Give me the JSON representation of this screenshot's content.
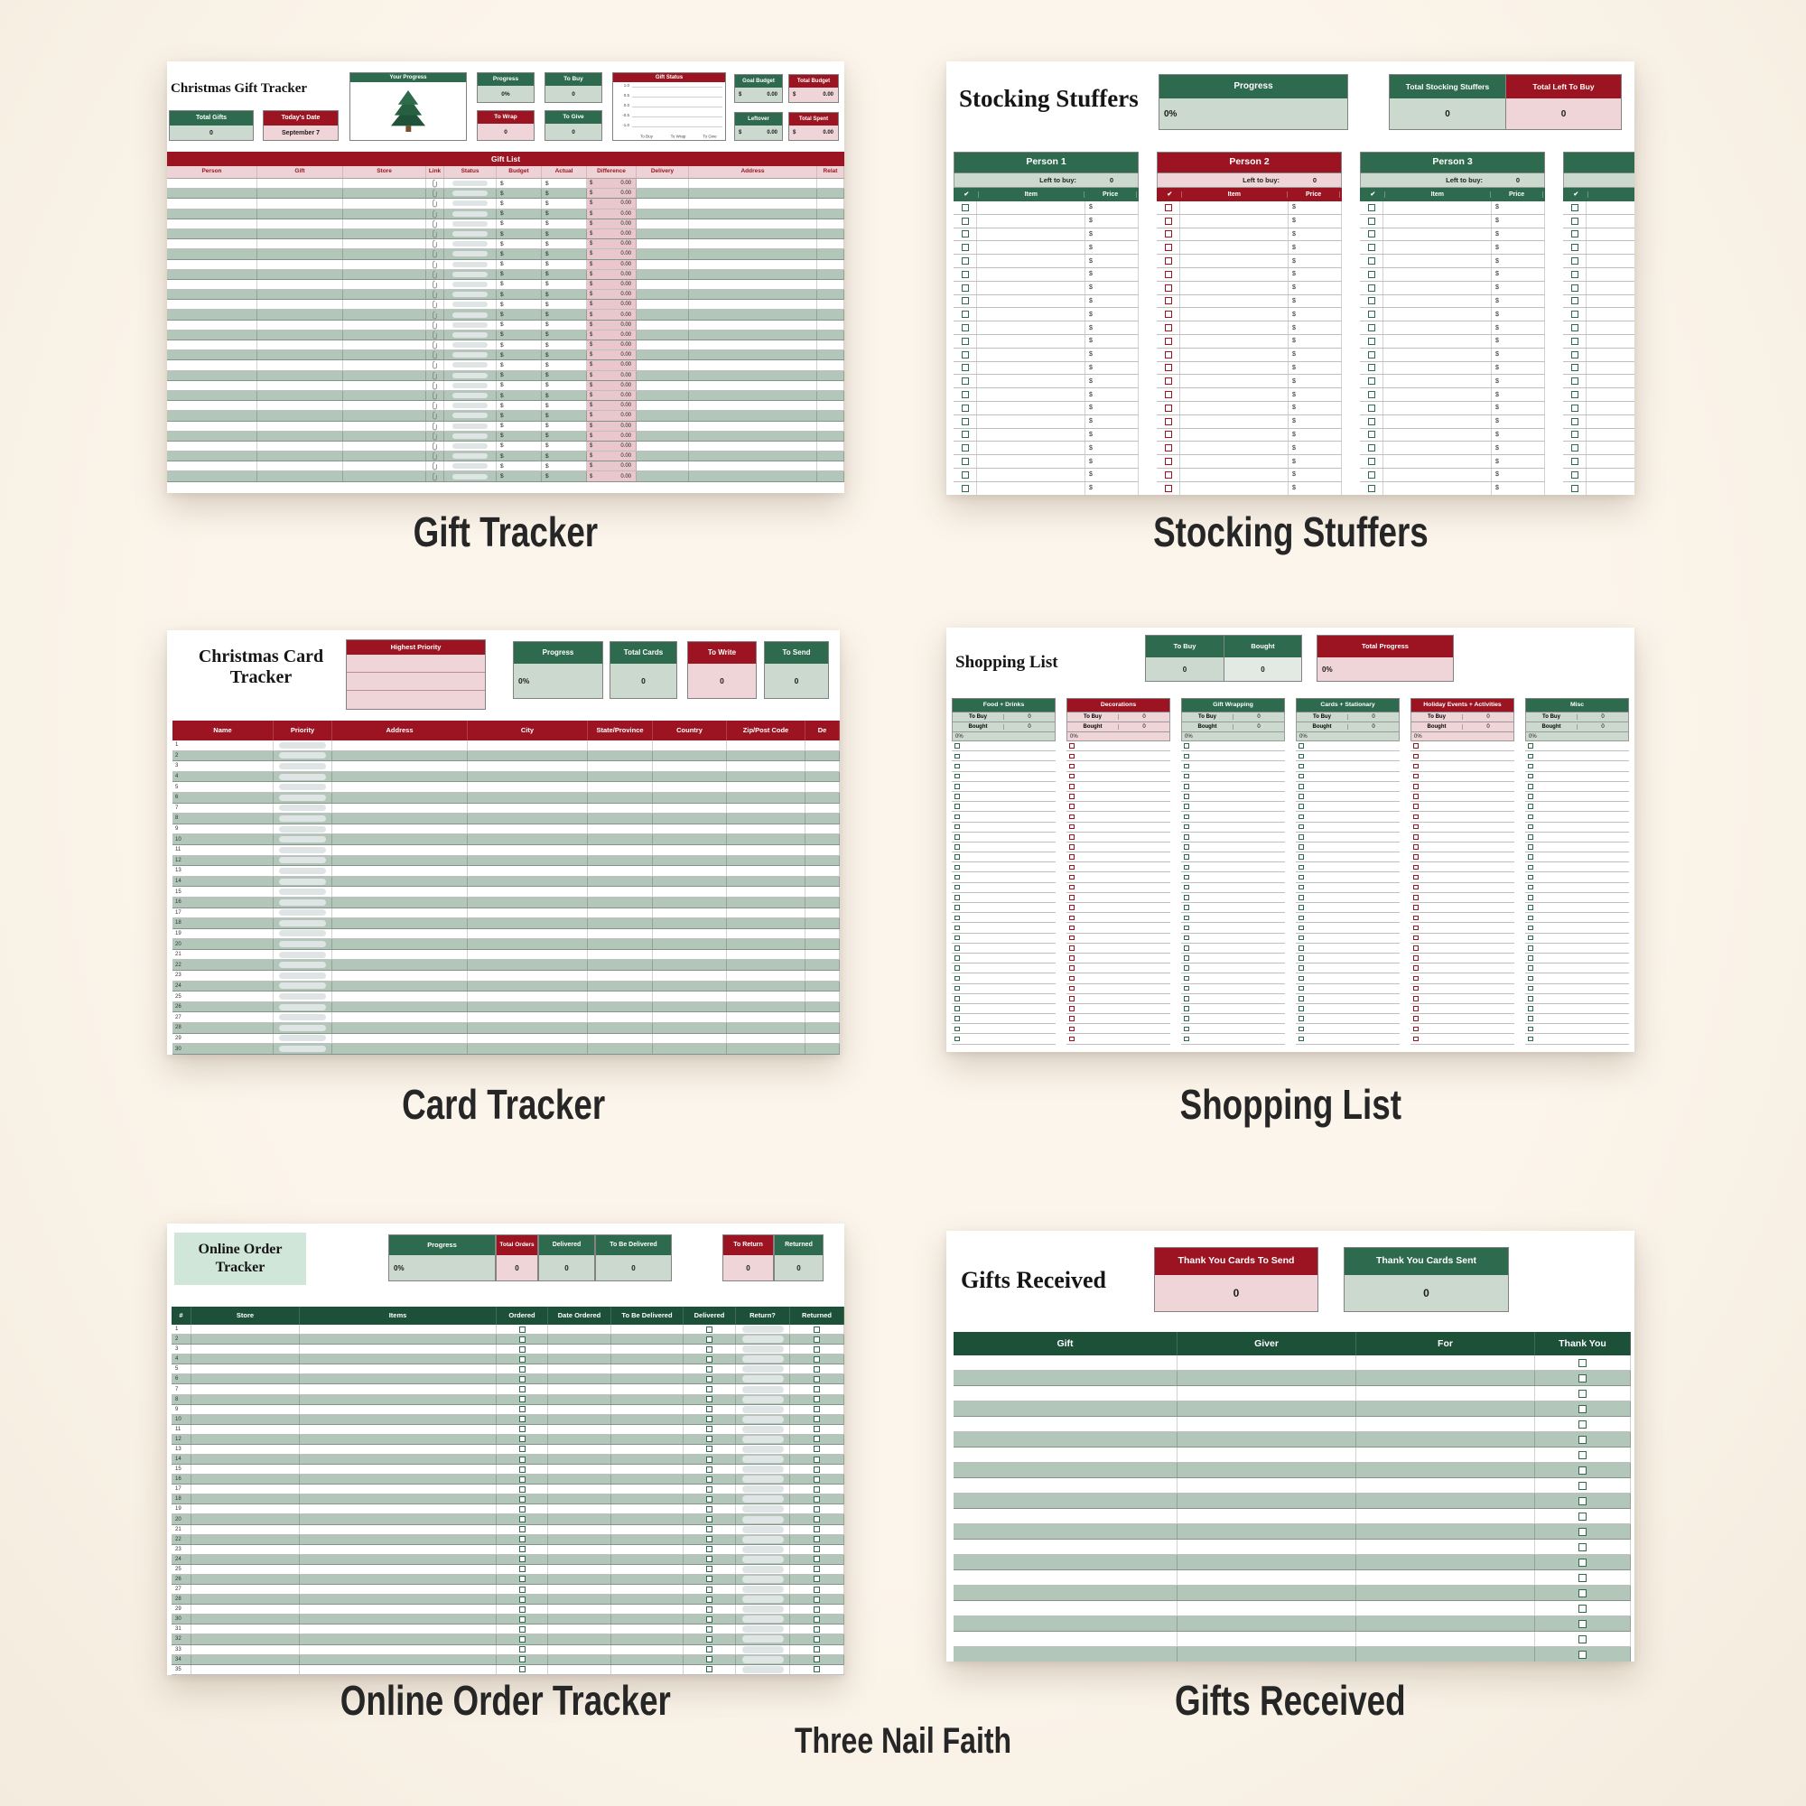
{
  "page": {
    "background": "#faf2e8",
    "brand": "Three Nail Faith"
  },
  "colors": {
    "green": "#2d6a4e",
    "green_dark": "#1d5038",
    "red": "#9c1421",
    "sage_light": "#ccd9ce",
    "pink": "#efd4d8",
    "row_alt": "#b2c6b9",
    "pink_cell": "#e9c7cc",
    "mint": "#cfe6d9",
    "pill": "#dfe5e5"
  },
  "captions": [
    "Gift Tracker",
    "Stocking Stuffers",
    "Card Tracker",
    "Shopping List",
    "Online Order Tracker",
    "Gifts Received"
  ],
  "gift_tracker": {
    "title": "Christmas Gift Tracker",
    "stats": [
      {
        "label": "Total Gifts",
        "value": "0",
        "theme": "green"
      },
      {
        "label": "Today's Date",
        "value": "September 7",
        "theme": "red"
      }
    ],
    "progress_card": {
      "label": "Your Progress",
      "icon": "christmas-tree"
    },
    "kpis": [
      {
        "label": "Progress",
        "value": "0%",
        "theme": "green"
      },
      {
        "label": "To Buy",
        "value": "0",
        "theme": "green"
      },
      {
        "label": "To Wrap",
        "value": "0",
        "theme": "red"
      },
      {
        "label": "To Give",
        "value": "0",
        "theme": "green"
      }
    ],
    "chart": {
      "type": "line",
      "title": "Gift Status",
      "yticks": [
        "1.0",
        "0.5",
        "0.0",
        "-0.5",
        "-1.0"
      ],
      "categories": [
        "To Buy",
        "To Wrap",
        "To Give"
      ],
      "values": [
        0,
        0,
        0
      ]
    },
    "budget_kpis": [
      {
        "label": "Goal Budget",
        "value_prefix": "$",
        "value": "0.00",
        "theme": "green"
      },
      {
        "label": "Total Budget",
        "value_prefix": "$",
        "value": "0.00",
        "theme": "red"
      },
      {
        "label": "Leftover",
        "value_prefix": "$",
        "value": "0.00",
        "theme": "green"
      },
      {
        "label": "Total Spent",
        "value_prefix": "$",
        "value": "0.00",
        "theme": "red"
      }
    ],
    "table": {
      "banner": "Gift List",
      "columns": [
        "Person",
        "Gift",
        "Store",
        "Link",
        "Status",
        "Budget",
        "Actual",
        "Difference",
        "Delivery",
        "Address",
        "Relat"
      ],
      "row_count": 30,
      "currency_symbol": "$",
      "difference_value": "0.00"
    }
  },
  "stocking_stuffers": {
    "title": "Stocking Stuffers",
    "progress": {
      "label": "Progress",
      "value": "0%"
    },
    "totals": [
      {
        "label": "Total Stocking Stuffers",
        "value": "0",
        "theme": "green"
      },
      {
        "label": "Total Left To Buy",
        "value": "0",
        "theme": "red"
      }
    ],
    "left_to_buy_label": "Left to buy:",
    "left_to_buy_value": "0",
    "check_header": "✔",
    "item_header": "Item",
    "price_header": "Price",
    "currency_symbol": "$",
    "persons": [
      {
        "name": "Person 1",
        "theme": "green"
      },
      {
        "name": "Person 2",
        "theme": "red"
      },
      {
        "name": "Person 3",
        "theme": "green"
      },
      {
        "name": "",
        "theme": "green"
      }
    ],
    "row_count": 22
  },
  "card_tracker": {
    "title": "Christmas Card Tracker",
    "priority_box": {
      "label": "Highest Priority",
      "rows": 3
    },
    "kpis": [
      {
        "label": "Progress",
        "value": "0%",
        "theme": "green"
      },
      {
        "label": "Total Cards",
        "value": "0",
        "theme": "green"
      },
      {
        "label": "To Write",
        "value": "0",
        "theme": "red"
      },
      {
        "label": "To Send",
        "value": "0",
        "theme": "green"
      }
    ],
    "table": {
      "columns": [
        "Name",
        "Priority",
        "Address",
        "City",
        "State/Province",
        "Country",
        "Zip/Post Code",
        "De"
      ],
      "row_count": 30
    }
  },
  "shopping_list": {
    "title": "Shopping List",
    "buy_bought": [
      {
        "label": "To Buy",
        "value": "0"
      },
      {
        "label": "Bought",
        "value": "0"
      }
    ],
    "total_progress": {
      "label": "Total Progress",
      "value": "0%"
    },
    "category_stats": {
      "to_buy_label": "To Buy",
      "bought_label": "Bought",
      "stat_value": "0",
      "percent": "0%"
    },
    "categories": [
      {
        "name": "Food + Drinks",
        "theme": "green"
      },
      {
        "name": "Decorations",
        "theme": "red"
      },
      {
        "name": "Gift Wrapping",
        "theme": "green"
      },
      {
        "name": "Cards + Stationary",
        "theme": "green"
      },
      {
        "name": "Holiday Events + Activities",
        "theme": "red"
      },
      {
        "name": "Misc",
        "theme": "green"
      }
    ],
    "row_count": 30
  },
  "online_order_tracker": {
    "title": "Online Order Tracker",
    "kpis": [
      {
        "label": "Progress",
        "value": "0%",
        "theme": "green"
      },
      {
        "label": "Total Orders",
        "value": "0",
        "theme": "red"
      },
      {
        "label": "Delivered",
        "value": "0",
        "theme": "green"
      },
      {
        "label": "To Be Delivered",
        "value": "0",
        "theme": "green"
      },
      {
        "label": "To Return",
        "value": "0",
        "theme": "red"
      },
      {
        "label": "Returned",
        "value": "0",
        "theme": "green"
      }
    ],
    "table": {
      "columns": [
        "#",
        "Store",
        "Items",
        "Ordered",
        "Date Ordered",
        "To Be Delivered",
        "Delivered",
        "Return?",
        "Returned"
      ],
      "row_count": 35
    }
  },
  "gifts_received": {
    "title": "Gifts Received",
    "kpis": [
      {
        "label": "Thank You Cards To Send",
        "value": "0",
        "theme": "red"
      },
      {
        "label": "Thank You Cards Sent",
        "value": "0",
        "theme": "green"
      }
    ],
    "table": {
      "columns": [
        "Gift",
        "Giver",
        "For",
        "Thank You"
      ],
      "row_count": 20
    }
  }
}
